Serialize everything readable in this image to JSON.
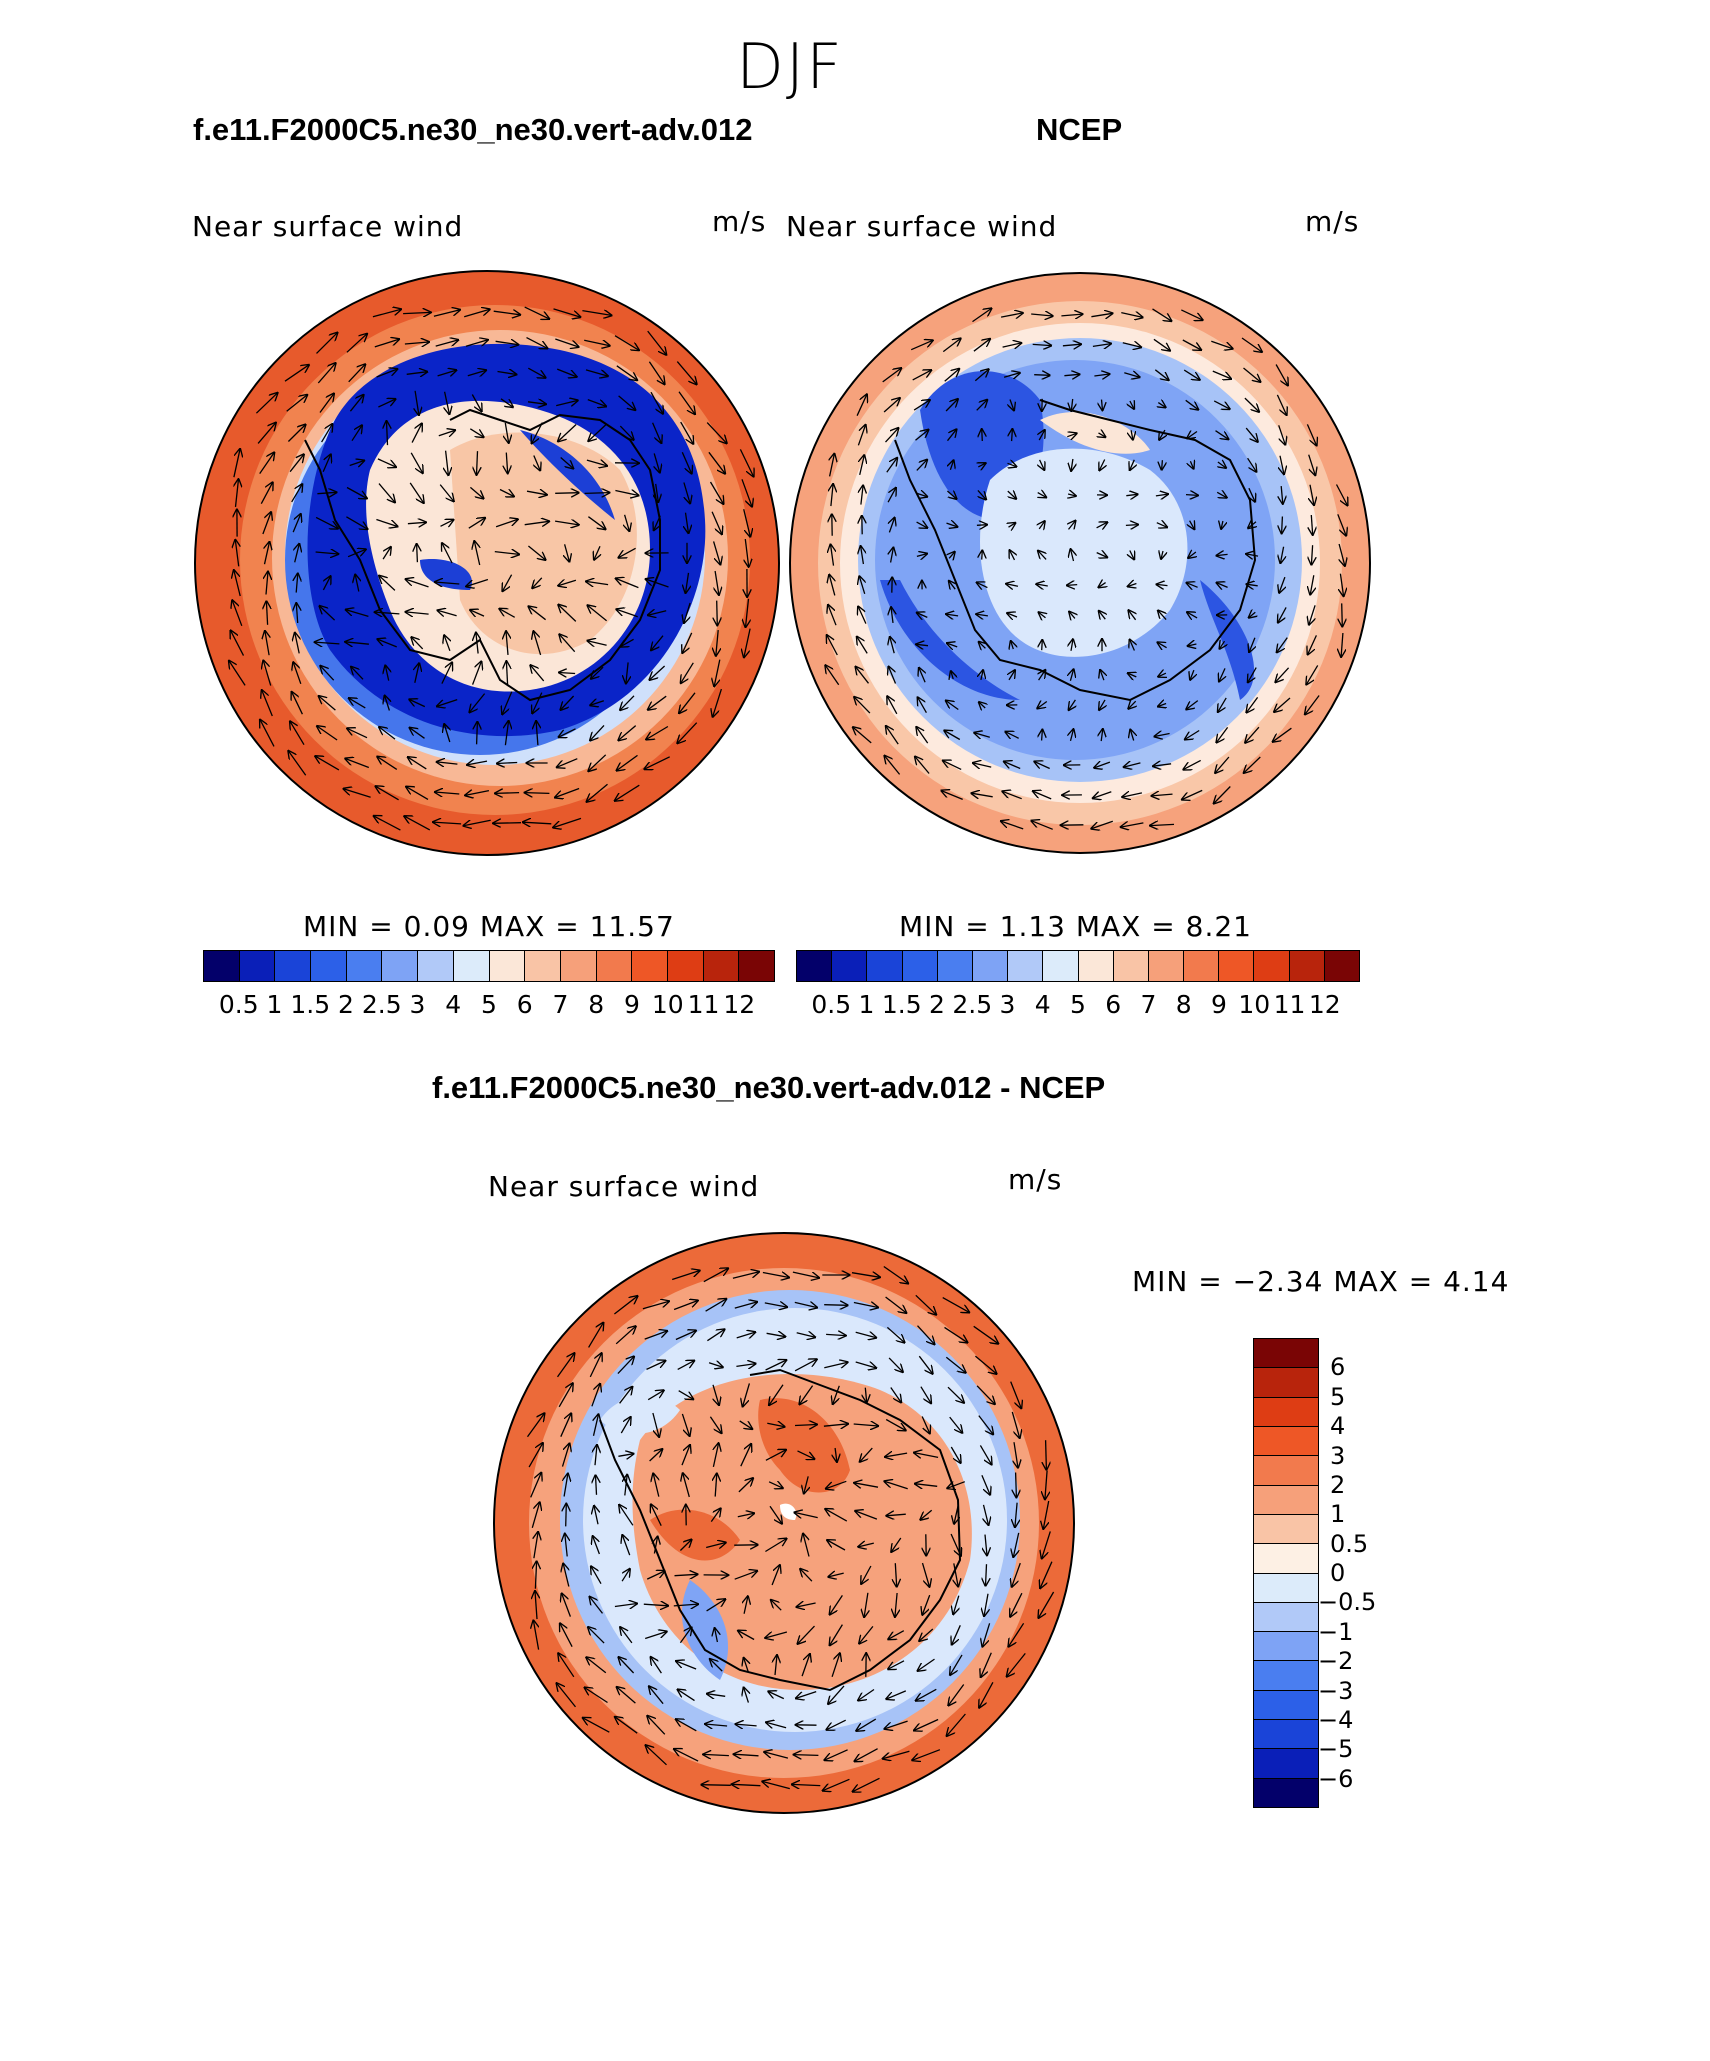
{
  "page": {
    "title": "DJF"
  },
  "panels": {
    "model": {
      "title": "f.e11.F2000C5.ne30_ne30.vert-adv.012",
      "variable": "Near surface wind",
      "units": "m/s",
      "minmax": "MIN =    0.09 MAX =    11.57"
    },
    "obs": {
      "title": "NCEP",
      "variable": "Near surface wind",
      "units": "m/s",
      "minmax": "MIN =    1.13 MAX =    8.21"
    },
    "diff": {
      "title": "f.e11.F2000C5.ne30_ne30.vert-adv.012 - NCEP",
      "variable": "Near surface wind",
      "units": "m/s",
      "minmax": "MIN =  −2.34 MAX =    4.14"
    }
  },
  "colorbars": {
    "abs": {
      "levels": [
        "0.5",
        "1",
        "1.5",
        "2",
        "2.5",
        "3",
        "4",
        "5",
        "6",
        "7",
        "8",
        "9",
        "10",
        "11",
        "12"
      ],
      "colors": [
        "#03006a",
        "#0a1fb8",
        "#1a44d8",
        "#2c60e8",
        "#4a7ef0",
        "#7ea3f5",
        "#b1c9f8",
        "#dcebfa",
        "#fbe7d8",
        "#f9c4a6",
        "#f6a07a",
        "#f27a4d",
        "#ee5726",
        "#de3d14",
        "#b8240c",
        "#7a0505"
      ]
    },
    "diff": {
      "levels": [
        "6",
        "5",
        "4",
        "3",
        "2",
        "1",
        "0.5",
        "0",
        "−0.5",
        "−1",
        "−2",
        "−3",
        "−4",
        "−5",
        "−6"
      ],
      "colors": [
        "#7a0505",
        "#b8240c",
        "#de3d14",
        "#ee5726",
        "#f27a4d",
        "#f6a07a",
        "#f9c4a6",
        "#fdf0e4",
        "#dcebfa",
        "#b1c9f8",
        "#7ea3f5",
        "#4a7ef0",
        "#2c60e8",
        "#1a44d8",
        "#0a1fb8",
        "#03006a"
      ]
    }
  },
  "colors": {
    "strong_red": "#e85a2c",
    "light_red": "#f7b48f",
    "deep_blue": "#0a24c8",
    "light_blue": "#a7c3f7",
    "pale": "#fbe6d7"
  }
}
